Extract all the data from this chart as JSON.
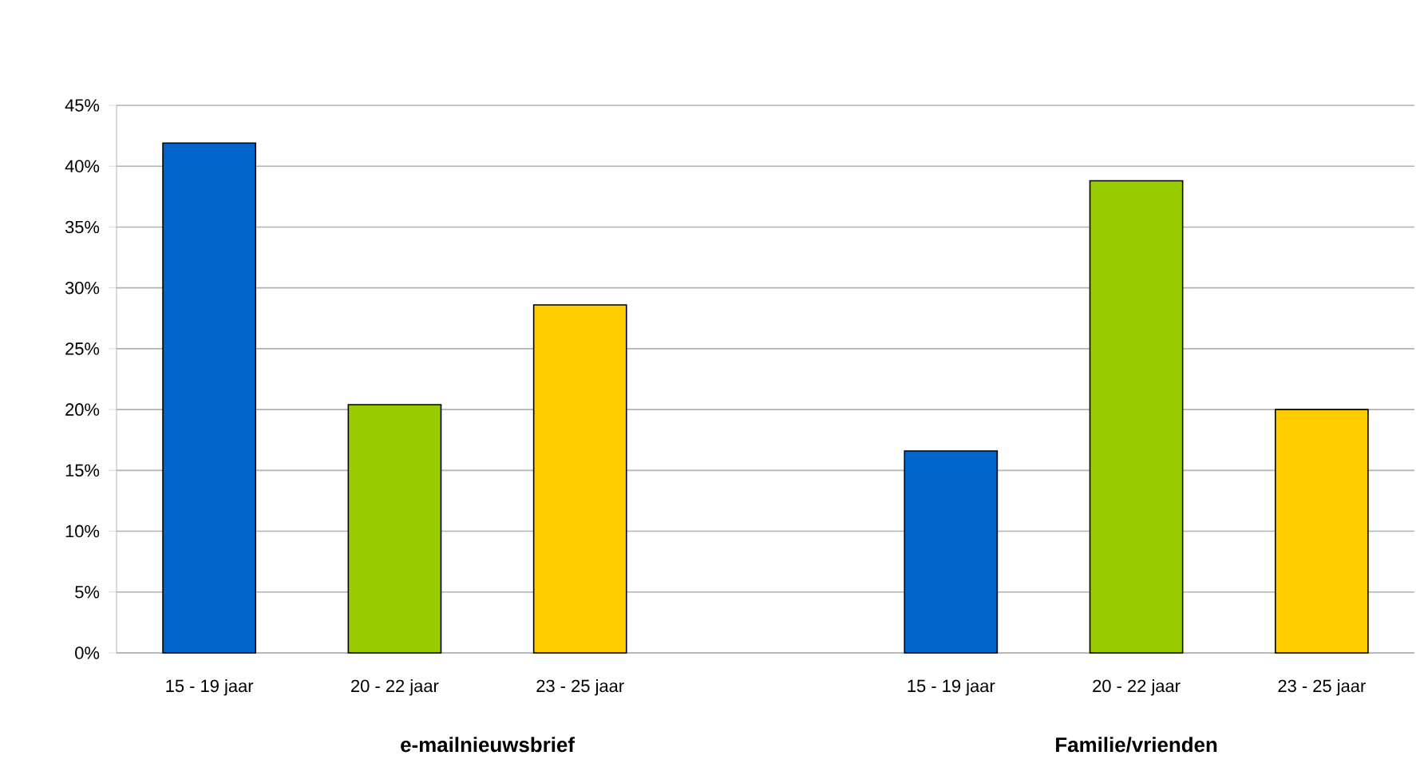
{
  "chart_data": {
    "type": "bar",
    "categories": [
      "15 - 19 jaar",
      "20 - 22 jaar",
      "23 - 25 jaar",
      null,
      "15 - 19 jaar",
      "20 - 22 jaar",
      "23 - 25 jaar"
    ],
    "values": [
      41.9,
      20.4,
      28.6,
      null,
      16.6,
      38.8,
      20.0
    ],
    "colors": [
      "#0066cc",
      "#99cc00",
      "#ffcc00",
      null,
      "#0066cc",
      "#99cc00",
      "#ffcc00"
    ],
    "annotations": [
      "e-mailnieuwsbrief",
      "Familie/vrienden"
    ],
    "ylim": [
      0,
      45
    ],
    "yticks": [
      {
        "value": 0,
        "label": "0%"
      },
      {
        "value": 5,
        "label": "5%"
      },
      {
        "value": 10,
        "label": "10%"
      },
      {
        "value": 15,
        "label": "15%"
      },
      {
        "value": 20,
        "label": "20%"
      },
      {
        "value": 25,
        "label": "25%"
      },
      {
        "value": 30,
        "label": "30%"
      },
      {
        "value": 35,
        "label": "35%"
      },
      {
        "value": 40,
        "label": "40%"
      },
      {
        "value": 45,
        "label": "45%"
      }
    ],
    "grid": "y"
  }
}
